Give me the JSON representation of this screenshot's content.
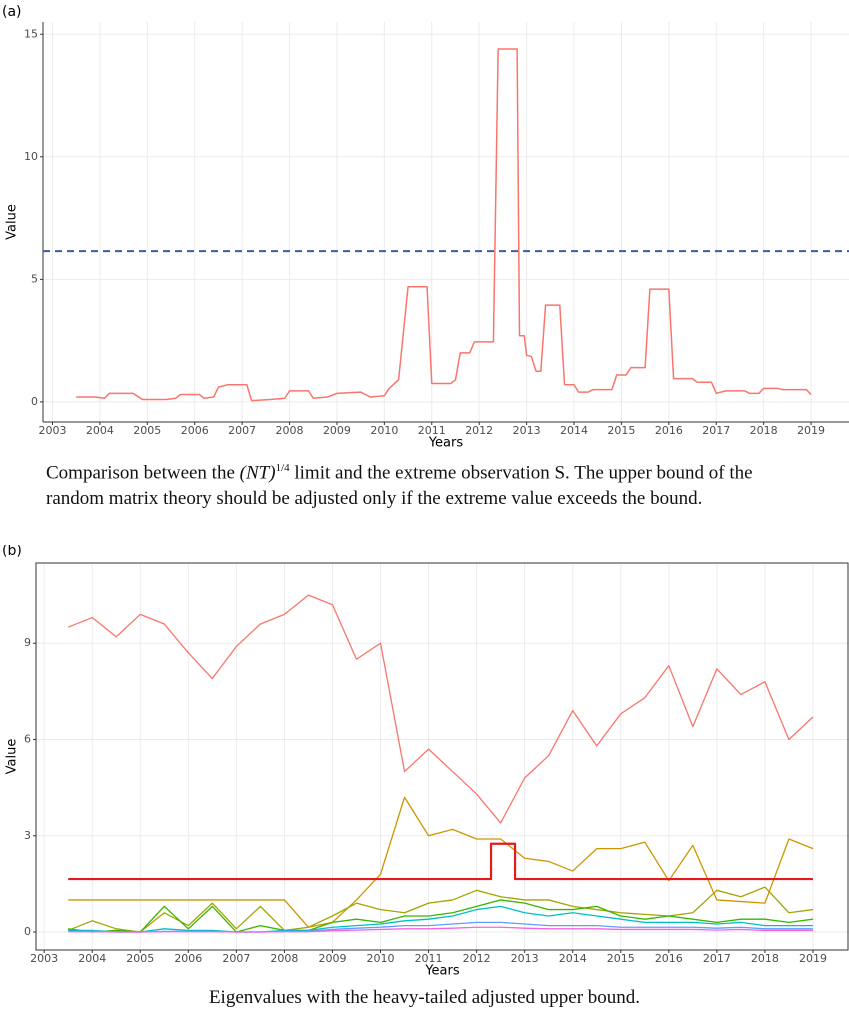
{
  "chart_data": [
    {
      "type": "line",
      "panel_label": "(a)",
      "x_label": "Years",
      "y_label": "Value",
      "caption": {
        "before": "Comparison between the",
        "math": "(NT)",
        "exponent": "1/4",
        "after": "limit and the extreme observation S. The upper bound of the random matrix theory should be adjusted only if the extreme value exceeds the bound."
      },
      "xlim": [
        2002.8,
        2019.8
      ],
      "xticks": [
        2003,
        2004,
        2005,
        2006,
        2007,
        2008,
        2009,
        2010,
        2011,
        2012,
        2013,
        2014,
        2015,
        2016,
        2017,
        2018,
        2019
      ],
      "ylim": [
        -0.82,
        15.5
      ],
      "yticks": [
        0,
        5,
        10,
        15
      ],
      "grid": true,
      "frame": false,
      "hline": {
        "value": 6.15,
        "color": "#3d5ca8",
        "dashed": true
      },
      "x": [
        2003.5,
        2003.9,
        2004.1,
        2004.2,
        2004.7,
        2004.9,
        2005.4,
        2005.6,
        2005.7,
        2006.1,
        2006.2,
        2006.4,
        2006.5,
        2006.7,
        2007.1,
        2007.2,
        2007.6,
        2007.9,
        2008.0,
        2008.4,
        2008.5,
        2008.8,
        2009.0,
        2009.5,
        2009.7,
        2010.0,
        2010.1,
        2010.3,
        2010.5,
        2010.9,
        2011.0,
        2011.4,
        2011.5,
        2011.6,
        2011.8,
        2011.9,
        2012.3,
        2012.4,
        2012.8,
        2012.85,
        2012.95,
        2013.0,
        2013.1,
        2013.2,
        2013.3,
        2013.4,
        2013.7,
        2013.8,
        2014.0,
        2014.1,
        2014.3,
        2014.4,
        2014.8,
        2014.9,
        2015.1,
        2015.2,
        2015.5,
        2015.6,
        2016.0,
        2016.1,
        2016.5,
        2016.6,
        2016.9,
        2017.0,
        2017.2,
        2017.6,
        2017.7,
        2017.9,
        2018.0,
        2018.3,
        2018.4,
        2018.9,
        2019.0
      ],
      "series": [
        {
          "color": "#f8766d",
          "width": 1.5,
          "values": [
            0.2,
            0.2,
            0.15,
            0.35,
            0.35,
            0.1,
            0.1,
            0.15,
            0.3,
            0.3,
            0.15,
            0.2,
            0.6,
            0.7,
            0.7,
            0.05,
            0.1,
            0.15,
            0.45,
            0.45,
            0.15,
            0.2,
            0.35,
            0.4,
            0.2,
            0.25,
            0.55,
            0.9,
            4.7,
            4.7,
            0.75,
            0.75,
            0.9,
            2.0,
            2.0,
            2.45,
            2.45,
            14.4,
            14.4,
            2.7,
            2.7,
            1.9,
            1.85,
            1.25,
            1.25,
            3.95,
            3.95,
            0.7,
            0.7,
            0.4,
            0.4,
            0.5,
            0.5,
            1.1,
            1.1,
            1.4,
            1.4,
            4.6,
            4.6,
            0.95,
            0.95,
            0.8,
            0.8,
            0.35,
            0.45,
            0.45,
            0.35,
            0.35,
            0.55,
            0.55,
            0.5,
            0.5,
            0.3
          ]
        }
      ]
    },
    {
      "type": "line",
      "panel_label": "(b)",
      "x_label": "Years",
      "y_label": "Value",
      "caption": {
        "text": "Eigenvalues with the heavy-tailed adjusted upper bound."
      },
      "xlim": [
        2002.83,
        2019.75
      ],
      "xticks": [
        2003,
        2004,
        2005,
        2006,
        2007,
        2008,
        2009,
        2010,
        2011,
        2012,
        2013,
        2014,
        2015,
        2016,
        2017,
        2018,
        2019
      ],
      "ylim": [
        -0.56,
        11.5
      ],
      "yticks": [
        0,
        3,
        6,
        9
      ],
      "grid": true,
      "frame": true,
      "x": [
        2003.5,
        2004.0,
        2004.5,
        2005.0,
        2005.5,
        2006.0,
        2006.5,
        2007.0,
        2007.5,
        2008.0,
        2008.5,
        2009.0,
        2009.5,
        2010.0,
        2010.5,
        2011.0,
        2011.5,
        2012.0,
        2012.5,
        2013.0,
        2013.5,
        2014.0,
        2014.5,
        2015.0,
        2015.5,
        2016.0,
        2016.5,
        2017.0,
        2017.5,
        2018.0,
        2018.5,
        2019.0
      ],
      "series": [
        {
          "color": "#f8766d",
          "width": 1.3,
          "values": [
            9.5,
            9.8,
            9.2,
            9.9,
            9.6,
            8.7,
            7.9,
            8.9,
            9.6,
            9.9,
            10.5,
            10.2,
            8.5,
            9.0,
            5.0,
            5.7,
            5.0,
            4.3,
            3.4,
            4.8,
            5.5,
            6.9,
            5.8,
            6.8,
            7.3,
            8.3,
            6.4,
            8.2,
            7.4,
            7.8,
            6.0,
            6.7
          ]
        },
        {
          "color": "#cd9600",
          "width": 1.3,
          "values": [
            1,
            1,
            1,
            1,
            1,
            1,
            1,
            1,
            1,
            1,
            0.15,
            0.3,
            1.0,
            1.8,
            4.2,
            3.0,
            3.2,
            2.9,
            2.9,
            2.3,
            2.2,
            1.9,
            2.6,
            2.6,
            2.8,
            1.6,
            2.7,
            1.0,
            0.95,
            0.9,
            2.9,
            2.6
          ]
        },
        {
          "color": "#a3a500",
          "width": 1.3,
          "values": [
            0.05,
            0.35,
            0.1,
            0,
            0.6,
            0.2,
            0.9,
            0.1,
            0.8,
            0.05,
            0.15,
            0.5,
            0.9,
            0.7,
            0.6,
            0.9,
            1.0,
            1.3,
            1.1,
            1.0,
            1.0,
            0.8,
            0.7,
            0.6,
            0.55,
            0.5,
            0.6,
            1.3,
            1.1,
            1.4,
            0.6,
            0.7
          ]
        },
        {
          "color": "#39b600",
          "width": 1.3,
          "values": [
            0.1,
            0,
            0.05,
            0,
            0.8,
            0.1,
            0.8,
            0,
            0.2,
            0.05,
            0.05,
            0.3,
            0.4,
            0.3,
            0.5,
            0.5,
            0.6,
            0.8,
            1.0,
            0.9,
            0.7,
            0.7,
            0.8,
            0.5,
            0.4,
            0.5,
            0.4,
            0.3,
            0.4,
            0.4,
            0.3,
            0.4
          ]
        },
        {
          "color": "#00bfc4",
          "width": 1.3,
          "values": [
            0.05,
            0.05,
            0,
            0,
            0.1,
            0.05,
            0.05,
            0,
            0,
            0.05,
            0.05,
            0.15,
            0.2,
            0.25,
            0.35,
            0.4,
            0.5,
            0.7,
            0.8,
            0.6,
            0.5,
            0.6,
            0.5,
            0.4,
            0.3,
            0.3,
            0.3,
            0.25,
            0.3,
            0.2,
            0.2,
            0.2
          ]
        },
        {
          "color": "#619cff",
          "width": 1.3,
          "values": [
            0.02,
            0.02,
            0,
            0,
            0.02,
            0.02,
            0.02,
            0,
            0,
            0.02,
            0.02,
            0.08,
            0.12,
            0.15,
            0.2,
            0.2,
            0.25,
            0.3,
            0.3,
            0.25,
            0.2,
            0.2,
            0.2,
            0.15,
            0.15,
            0.15,
            0.15,
            0.12,
            0.15,
            0.1,
            0.1,
            0.1
          ]
        },
        {
          "color": "#f564e3",
          "width": 1.3,
          "values": [
            0.01,
            0.01,
            0,
            0,
            0.01,
            0.01,
            0.01,
            0,
            0,
            0.01,
            0.01,
            0.04,
            0.06,
            0.08,
            0.1,
            0.1,
            0.12,
            0.15,
            0.15,
            0.12,
            0.1,
            0.1,
            0.1,
            0.08,
            0.08,
            0.08,
            0.08,
            0.06,
            0.08,
            0.05,
            0.05,
            0.05
          ]
        },
        {
          "color": "#e41a1c",
          "width": 2.2,
          "x": [
            2003.5,
            2012.3,
            2012.3,
            2012.8,
            2012.8,
            2019.0
          ],
          "values": [
            1.65,
            1.65,
            2.75,
            2.75,
            1.65,
            1.65
          ]
        }
      ]
    }
  ]
}
